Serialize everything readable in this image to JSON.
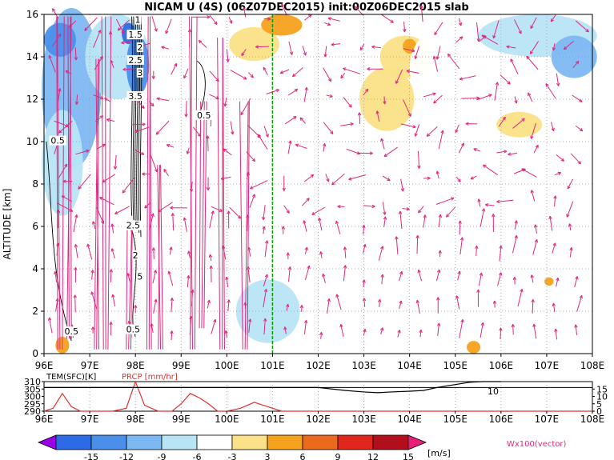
{
  "chart_data": [
    {
      "type": "heatmap",
      "title": "NICAM U (4S) (06Z07DEC2015) init:00Z06DEC2015 slab",
      "xlabel": "",
      "ylabel": "ALTITUDE [km]",
      "xlim": [
        96,
        108
      ],
      "ylim": [
        0,
        16
      ],
      "x_tick_labels": [
        "96E",
        "97E",
        "98E",
        "99E",
        "100E",
        "101E",
        "102E",
        "103E",
        "104E",
        "105E",
        "106E",
        "107E",
        "108E"
      ],
      "y_ticks": [
        0,
        2,
        4,
        6,
        8,
        10,
        12,
        14,
        16
      ],
      "grid": true,
      "marked_longitude": 101,
      "vector_label": "Wx100(vector)",
      "contour_labels": [
        {
          "text": "1",
          "lon": 98.05,
          "alt": 15.6
        },
        {
          "text": "1.5",
          "lon": 98.0,
          "alt": 14.9
        },
        {
          "text": "2",
          "lon": 98.1,
          "alt": 14.3
        },
        {
          "text": "2.5",
          "lon": 98.0,
          "alt": 13.7
        },
        {
          "text": "3",
          "lon": 98.1,
          "alt": 13.1
        },
        {
          "text": "3.5",
          "lon": 98.0,
          "alt": 12.0
        },
        {
          "text": "0.5",
          "lon": 99.5,
          "alt": 11.1
        },
        {
          "text": "0.5",
          "lon": 96.3,
          "alt": 9.9
        },
        {
          "text": "2.5",
          "lon": 97.95,
          "alt": 5.9
        },
        {
          "text": "2",
          "lon": 98.0,
          "alt": 4.5
        },
        {
          "text": "5",
          "lon": 98.1,
          "alt": 3.5
        },
        {
          "text": "0.5",
          "lon": 96.6,
          "alt": 0.9
        },
        {
          "text": "0.5",
          "lon": 97.95,
          "alt": 1.0
        }
      ],
      "wind_blobs": [
        {
          "lon": 96.6,
          "alt": 12.5,
          "rx": 0.65,
          "ry": 3.8,
          "u": -9
        },
        {
          "lon": 97.6,
          "alt": 14.0,
          "rx": 0.7,
          "ry": 2.0,
          "u": -6
        },
        {
          "lon": 96.4,
          "alt": 9.0,
          "rx": 0.45,
          "ry": 2.5,
          "u": -6
        },
        {
          "lon": 96.35,
          "alt": 14.8,
          "rx": 0.35,
          "ry": 0.8,
          "u": -12
        },
        {
          "lon": 97.85,
          "alt": 15.1,
          "rx": 0.15,
          "ry": 0.5,
          "u": -15
        },
        {
          "lon": 98.05,
          "alt": 13.6,
          "rx": 0.25,
          "ry": 1.4,
          "u": -12
        },
        {
          "lon": 101.8,
          "alt": 14.6,
          "rx": 1.1,
          "ry": 1.2,
          "u": -3
        },
        {
          "lon": 100.6,
          "alt": 14.6,
          "rx": 0.55,
          "ry": 0.8,
          "u": 3
        },
        {
          "lon": 101.2,
          "alt": 15.5,
          "rx": 0.45,
          "ry": 0.5,
          "u": 6
        },
        {
          "lon": 103.5,
          "alt": 12.0,
          "rx": 0.6,
          "ry": 1.5,
          "u": 3
        },
        {
          "lon": 103.9,
          "alt": 14.0,
          "rx": 0.55,
          "ry": 1.0,
          "u": 3
        },
        {
          "lon": 104.0,
          "alt": 14.5,
          "rx": 0.15,
          "ry": 0.35,
          "u": 6
        },
        {
          "lon": 105.3,
          "alt": 13.5,
          "rx": 1.3,
          "ry": 2.4,
          "u": -3
        },
        {
          "lon": 106.8,
          "alt": 15.0,
          "rx": 1.3,
          "ry": 1.0,
          "u": -6
        },
        {
          "lon": 107.6,
          "alt": 14.0,
          "rx": 0.5,
          "ry": 1.0,
          "u": -9
        },
        {
          "lon": 106.4,
          "alt": 10.8,
          "rx": 0.5,
          "ry": 0.6,
          "u": 3
        },
        {
          "lon": 107.9,
          "alt": 9.5,
          "rx": 0.3,
          "ry": 0.9,
          "u": -3
        },
        {
          "lon": 105.0,
          "alt": 10.8,
          "rx": 0.35,
          "ry": 0.4,
          "u": -3
        },
        {
          "lon": 100.8,
          "alt": 3.5,
          "rx": 1.0,
          "ry": 1.5,
          "u": -3
        },
        {
          "lon": 100.9,
          "alt": 2.0,
          "rx": 0.7,
          "ry": 1.5,
          "u": -6
        },
        {
          "lon": 99.5,
          "alt": 1.5,
          "rx": 0.5,
          "ry": 0.9,
          "u": -3
        },
        {
          "lon": 102.3,
          "alt": 4.0,
          "rx": 0.8,
          "ry": 0.6,
          "u": -3
        },
        {
          "lon": 104.1,
          "alt": 4.0,
          "rx": 0.8,
          "ry": 0.6,
          "u": -3
        },
        {
          "lon": 105.3,
          "alt": 1.2,
          "rx": 0.5,
          "ry": 0.7,
          "u": -3
        },
        {
          "lon": 106.9,
          "alt": 1.7,
          "rx": 0.5,
          "ry": 0.9,
          "u": -3
        },
        {
          "lon": 96.4,
          "alt": 0.4,
          "rx": 0.15,
          "ry": 0.4,
          "u": 6
        },
        {
          "lon": 105.4,
          "alt": 0.3,
          "rx": 0.15,
          "ry": 0.3,
          "u": 6
        },
        {
          "lon": 107.05,
          "alt": 3.4,
          "rx": 0.1,
          "ry": 0.2,
          "u": 6
        }
      ]
    },
    {
      "type": "line",
      "series": [
        {
          "name": "TEM(SFC)[K]",
          "x": [
            96,
            96.5,
            97,
            97.5,
            98,
            98.5,
            99,
            99.5,
            100,
            100.5,
            101,
            101.5,
            102,
            102.3,
            102.6,
            103,
            103.3,
            103.6,
            104,
            104.3,
            104.6,
            105,
            105.3,
            105.6,
            106
          ],
          "values": [
            306,
            306,
            306,
            306,
            306,
            306,
            306,
            306,
            306,
            306,
            306,
            306,
            306,
            305,
            304,
            303,
            302.5,
            303,
            303.5,
            304,
            306,
            308,
            309.5,
            310,
            310
          ]
        },
        {
          "name": "PRCP [mm/hr]",
          "x": [
            96,
            96.2,
            96.4,
            96.6,
            96.8,
            97,
            97.2,
            97.5,
            97.8,
            98,
            98.2,
            98.5,
            98.8,
            99,
            99.2,
            99.4,
            99.6,
            99.8,
            100,
            100.3,
            100.6,
            100.9,
            101.2,
            101.5,
            102,
            108
          ],
          "values": [
            0,
            2,
            12,
            3,
            0,
            0,
            0,
            0,
            2,
            20,
            4,
            0,
            0,
            5,
            12,
            9,
            5,
            0,
            0,
            2,
            6,
            3,
            0,
            0,
            0,
            0
          ]
        }
      ],
      "y_left_ticks": [
        290,
        295,
        300,
        305,
        310
      ],
      "y_right_ticks": [
        0,
        5,
        10,
        15
      ],
      "series_end_label": "10"
    }
  ],
  "colorbar": {
    "levels": [
      -15,
      -12,
      -9,
      -6,
      -3,
      3,
      6,
      9,
      12,
      15
    ],
    "colors": [
      "#9b00e6",
      "#2d6be6",
      "#4a90ea",
      "#7eb8f2",
      "#b8e5f5",
      "#ffffff",
      "#fbe187",
      "#f5a21e",
      "#ec6a1e",
      "#e1261d",
      "#b30e1b",
      "#e91e7a"
    ],
    "unit": "[m/s]"
  },
  "colors": {
    "vector": "#e0287e",
    "marker_line": "#00a000",
    "prcp": "#e03030",
    "temp": "#000000"
  }
}
